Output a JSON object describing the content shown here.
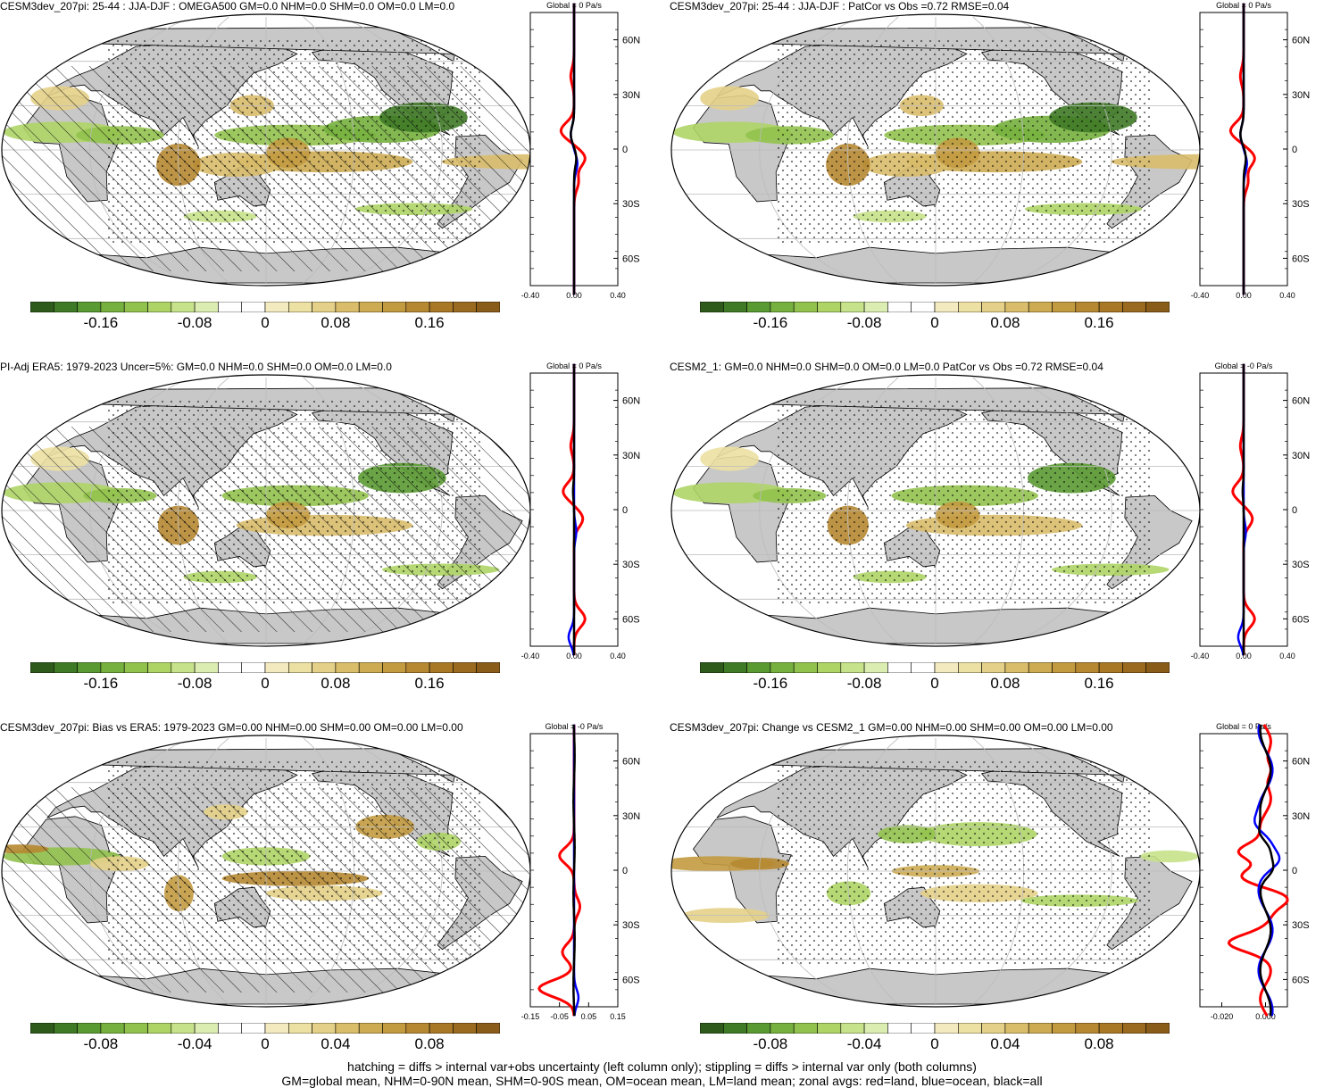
{
  "panels": [
    {
      "title": "CESM3dev_207pi: 25-44 : JJA-DJF : OMEGA500 GM=0.0 NHM=0.0 SHM=0.0 OM=0.0 LM=0.0",
      "zonal_title": "Global = 0 Pa/s",
      "colorbar_labels": [
        "-0.16",
        "-0.08",
        "0",
        "0.08",
        "0.16"
      ],
      "zonal_xticks": [
        "-0.40",
        "0.00",
        "0.40"
      ],
      "hatching": true,
      "stipple": true,
      "variant": "a"
    },
    {
      "title": "CESM3dev_207pi: 25-44 : JJA-DJF : PatCor vs Obs =0.72 RMSE=0.04",
      "zonal_title": "Global = 0 Pa/s",
      "colorbar_labels": [
        "-0.16",
        "-0.08",
        "0",
        "0.08",
        "0.16"
      ],
      "zonal_xticks": [
        "-0.40",
        "0.00",
        "0.40"
      ],
      "hatching": false,
      "stipple": true,
      "variant": "a"
    },
    {
      "title": "PI-Adj ERA5: 1979-2023 Uncer=5%: GM=0.0 NHM=0.0 SHM=0.0 OM=0.0 LM=0.0",
      "zonal_title": "Global = 0 Pa/s",
      "colorbar_labels": [
        "-0.16",
        "-0.08",
        "0",
        "0.08",
        "0.16"
      ],
      "zonal_xticks": [
        "-0.40",
        "0.00",
        "0.40"
      ],
      "hatching": true,
      "stipple": true,
      "variant": "b"
    },
    {
      "title": "CESM2_1: GM=0.0 NHM=0.0 SHM=0.0 OM=0.0 LM=0.0 PatCor vs Obs =0.72 RMSE=0.04",
      "zonal_title": "Global = -0 Pa/s",
      "colorbar_labels": [
        "-0.16",
        "-0.08",
        "0",
        "0.08",
        "0.16"
      ],
      "zonal_xticks": [
        "-0.40",
        "0.00",
        "0.40"
      ],
      "hatching": false,
      "stipple": true,
      "variant": "b"
    },
    {
      "title": "CESM3dev_207pi: Bias vs ERA5: 1979-2023 GM=0.00 NHM=0.00 SHM=0.00 OM=0.00 LM=0.00",
      "zonal_title": "Global = -0 Pa/s",
      "colorbar_labels": [
        "-0.08",
        "-0.04",
        "0",
        "0.04",
        "0.08"
      ],
      "zonal_xticks": [
        "-0.15",
        "-0.05",
        "0.05",
        "0.15"
      ],
      "hatching": true,
      "stipple": true,
      "variant": "c"
    },
    {
      "title": "CESM3dev_207pi: Change vs CESM2_1 GM=0.00 NHM=0.00 SHM=0.00 OM=0.00 LM=0.00",
      "zonal_title": "Global = 0 Pa/s",
      "colorbar_labels": [
        "-0.08",
        "-0.04",
        "0",
        "0.04",
        "0.08"
      ],
      "zonal_xticks": [
        "-0.020",
        "0.000"
      ],
      "hatching": false,
      "stipple": true,
      "variant": "d"
    }
  ],
  "lat_labels": [
    "60N",
    "30N",
    "0",
    "30S",
    "60S"
  ],
  "footer": {
    "line1": "hatching = diffs > internal var+obs uncertainty (left column only); stippling = diffs > internal var only (both columns)",
    "line2": "GM=global mean, NHM=0-90N mean, SHM=0-90S mean, OM=ocean mean, LM=land mean; zonal avgs: red=land, blue=ocean, black=all"
  },
  "colors": {
    "colorbar": [
      "#2e5a1c",
      "#3f7a26",
      "#5a9a32",
      "#76b03e",
      "#92c24e",
      "#aed466",
      "#c6e28a",
      "#dcedb2",
      "#ffffff",
      "#ffffff",
      "#f3eac0",
      "#ece0a2",
      "#e4d088",
      "#d9bd6a",
      "#ccab52",
      "#c29a40",
      "#b68832",
      "#a87826",
      "#9a6a20",
      "#8a5c1a"
    ],
    "land": "#c8c8c8",
    "zonal_land": "#ff0000",
    "zonal_ocean": "#0000ff",
    "zonal_all": "#000000"
  }
}
